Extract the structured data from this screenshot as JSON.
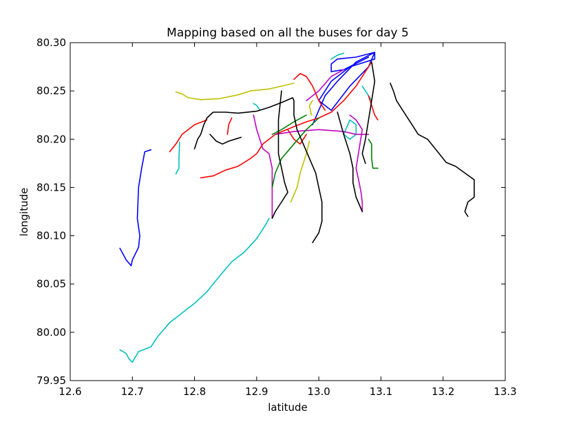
{
  "chart_data": {
    "type": "line",
    "title": "Mapping based on all the buses for day 5",
    "xlabel": "latitude",
    "ylabel": "longitude",
    "xlim": [
      12.6,
      13.3
    ],
    "ylim": [
      79.95,
      80.3
    ],
    "xticks": [
      "12.6",
      "12.7",
      "12.8",
      "12.9",
      "13.0",
      "13.1",
      "13.2",
      "13.3"
    ],
    "yticks": [
      "79.95",
      "80.00",
      "80.05",
      "80.10",
      "80.15",
      "80.20",
      "80.25",
      "80.30"
    ],
    "grid": false,
    "legend": "none",
    "series": [
      {
        "color": "#0000ff",
        "points": [
          [
            12.68,
            80.087
          ],
          [
            12.69,
            80.075
          ],
          [
            12.698,
            80.069
          ],
          [
            12.7,
            80.075
          ],
          [
            12.71,
            80.088
          ],
          [
            12.712,
            80.1
          ],
          [
            12.708,
            80.118
          ],
          [
            12.71,
            80.15
          ],
          [
            12.715,
            80.17
          ],
          [
            12.72,
            80.187
          ],
          [
            12.73,
            80.189
          ]
        ]
      },
      {
        "color": "#0000ff",
        "points": [
          [
            12.99,
            80.215
          ],
          [
            13.01,
            80.245
          ],
          [
            13.03,
            80.26
          ],
          [
            13.06,
            80.28
          ],
          [
            13.09,
            80.29
          ],
          [
            13.09,
            80.283
          ],
          [
            13.05,
            80.275
          ],
          [
            13.02,
            80.26
          ],
          [
            13.0,
            80.24
          ],
          [
            13.02,
            80.23
          ],
          [
            13.05,
            80.255
          ],
          [
            13.08,
            80.275
          ],
          [
            13.09,
            80.29
          ],
          [
            13.06,
            80.285
          ],
          [
            13.03,
            80.283
          ],
          [
            13.02,
            80.278
          ],
          [
            13.02,
            80.27
          ],
          [
            13.04,
            80.272
          ],
          [
            13.08,
            80.285
          ]
        ]
      },
      {
        "color": "#00bfbf",
        "points": [
          [
            12.68,
            79.982
          ],
          [
            12.69,
            79.978
          ],
          [
            12.695,
            79.972
          ],
          [
            12.7,
            79.969
          ],
          [
            12.71,
            79.98
          ],
          [
            12.73,
            79.985
          ],
          [
            12.74,
            79.995
          ],
          [
            12.76,
            80.01
          ],
          [
            12.78,
            80.02
          ],
          [
            12.8,
            80.03
          ],
          [
            12.82,
            80.042
          ],
          [
            12.84,
            80.058
          ],
          [
            12.86,
            80.073
          ],
          [
            12.88,
            80.083
          ],
          [
            12.9,
            80.097
          ],
          [
            12.915,
            80.112
          ],
          [
            12.92,
            80.118
          ]
        ]
      },
      {
        "color": "#00bfbf",
        "points": [
          [
            12.77,
            80.164
          ],
          [
            12.775,
            80.17
          ],
          [
            12.775,
            80.18
          ],
          [
            12.776,
            80.197
          ]
        ]
      },
      {
        "color": "#00bfbf",
        "points": [
          [
            12.895,
            80.237
          ],
          [
            12.9,
            80.235
          ],
          [
            12.905,
            80.23
          ]
        ]
      },
      {
        "color": "#00bfbf",
        "points": [
          [
            13.02,
            80.283
          ],
          [
            13.03,
            80.287
          ],
          [
            13.04,
            80.289
          ]
        ]
      },
      {
        "color": "#00bfbf",
        "points": [
          [
            13.04,
            80.205
          ],
          [
            13.05,
            80.2
          ],
          [
            13.06,
            80.205
          ],
          [
            13.06,
            80.215
          ],
          [
            13.05,
            80.22
          ],
          [
            13.04,
            80.205
          ]
        ]
      },
      {
        "color": "#00bfbf",
        "points": [
          [
            13.07,
            80.255
          ],
          [
            13.075,
            80.25
          ],
          [
            13.08,
            80.245
          ],
          [
            13.085,
            80.24
          ]
        ]
      },
      {
        "color": "#bfbf00",
        "points": [
          [
            12.77,
            80.249
          ],
          [
            12.78,
            80.247
          ],
          [
            12.79,
            80.243
          ],
          [
            12.81,
            80.241
          ],
          [
            12.84,
            80.242
          ],
          [
            12.87,
            80.246
          ],
          [
            12.89,
            80.25
          ],
          [
            12.92,
            80.252
          ],
          [
            12.94,
            80.255
          ],
          [
            12.96,
            80.258
          ]
        ]
      },
      {
        "color": "#bfbf00",
        "points": [
          [
            12.985,
            80.198
          ],
          [
            12.98,
            80.185
          ],
          [
            12.975,
            80.175
          ],
          [
            12.97,
            80.165
          ],
          [
            12.965,
            80.15
          ],
          [
            12.955,
            80.135
          ]
        ]
      },
      {
        "color": "#bfbf00",
        "points": [
          [
            12.988,
            80.225
          ],
          [
            12.985,
            80.235
          ],
          [
            12.99,
            80.24
          ]
        ]
      },
      {
        "color": "#ff0000",
        "points": [
          [
            12.81,
            80.16
          ],
          [
            12.83,
            80.162
          ],
          [
            12.85,
            80.168
          ],
          [
            12.87,
            80.172
          ],
          [
            12.88,
            80.176
          ],
          [
            12.89,
            80.18
          ],
          [
            12.9,
            80.185
          ],
          [
            12.905,
            80.19
          ],
          [
            12.91,
            80.195
          ],
          [
            12.93,
            80.205
          ],
          [
            12.96,
            80.213
          ],
          [
            12.98,
            80.218
          ],
          [
            13.0,
            80.222
          ],
          [
            13.02,
            80.228
          ],
          [
            13.04,
            80.24
          ],
          [
            13.06,
            80.255
          ],
          [
            13.08,
            80.275
          ],
          [
            13.085,
            80.28
          ]
        ]
      },
      {
        "color": "#ff0000",
        "points": [
          [
            12.76,
            80.187
          ],
          [
            12.77,
            80.195
          ],
          [
            12.78,
            80.205
          ],
          [
            12.8,
            80.215
          ],
          [
            12.82,
            80.22
          ]
        ]
      },
      {
        "color": "#ff0000",
        "points": [
          [
            12.853,
            80.205
          ],
          [
            12.855,
            80.215
          ],
          [
            12.86,
            80.222
          ]
        ]
      },
      {
        "color": "#ff0000",
        "points": [
          [
            12.96,
            80.262
          ],
          [
            12.97,
            80.268
          ],
          [
            12.98,
            80.265
          ],
          [
            12.99,
            80.255
          ],
          [
            13.0,
            80.24
          ],
          [
            13.01,
            80.23
          ]
        ]
      },
      {
        "color": "#ff0000",
        "points": [
          [
            12.95,
            80.21
          ],
          [
            12.96,
            80.2
          ],
          [
            12.97,
            80.195
          ],
          [
            12.98,
            80.205
          ]
        ]
      },
      {
        "color": "#ff0000",
        "points": [
          [
            13.08,
            80.245
          ],
          [
            13.085,
            80.235
          ],
          [
            13.09,
            80.225
          ],
          [
            13.095,
            80.22
          ]
        ]
      },
      {
        "color": "#bf00bf",
        "points": [
          [
            12.895,
            80.225
          ],
          [
            12.9,
            80.21
          ],
          [
            12.905,
            80.2
          ],
          [
            12.91,
            80.19
          ],
          [
            12.92,
            80.185
          ],
          [
            12.925,
            80.17
          ],
          [
            12.925,
            80.14
          ],
          [
            12.925,
            80.118
          ]
        ]
      },
      {
        "color": "#bf00bf",
        "points": [
          [
            13.05,
            80.225
          ],
          [
            13.06,
            80.22
          ],
          [
            13.07,
            80.21
          ],
          [
            13.065,
            80.19
          ],
          [
            13.06,
            80.17
          ],
          [
            13.065,
            80.155
          ],
          [
            13.068,
            80.145
          ],
          [
            13.07,
            80.135
          ],
          [
            13.07,
            80.125
          ]
        ]
      },
      {
        "color": "#bf00bf",
        "points": [
          [
            12.93,
            80.205
          ],
          [
            12.96,
            80.208
          ],
          [
            13.0,
            80.21
          ],
          [
            13.04,
            80.208
          ],
          [
            13.06,
            80.205
          ],
          [
            13.08,
            80.205
          ]
        ]
      },
      {
        "color": "#bf00bf",
        "points": [
          [
            12.98,
            80.24
          ],
          [
            13.0,
            80.25
          ],
          [
            13.02,
            80.265
          ],
          [
            13.04,
            80.272
          ]
        ]
      },
      {
        "color": "#007f00",
        "points": [
          [
            12.925,
            80.15
          ],
          [
            12.93,
            80.165
          ],
          [
            12.94,
            80.18
          ],
          [
            12.96,
            80.195
          ],
          [
            12.98,
            80.21
          ],
          [
            13.0,
            80.222
          ]
        ]
      },
      {
        "color": "#007f00",
        "points": [
          [
            12.925,
            80.205
          ],
          [
            12.94,
            80.21
          ],
          [
            12.96,
            80.218
          ],
          [
            12.98,
            80.225
          ]
        ]
      },
      {
        "color": "#007f00",
        "points": [
          [
            13.08,
            80.2
          ],
          [
            13.085,
            80.195
          ],
          [
            13.085,
            80.18
          ],
          [
            13.087,
            80.17
          ],
          [
            13.095,
            80.17
          ]
        ]
      },
      {
        "color": "#000000",
        "points": [
          [
            12.8,
            80.19
          ],
          [
            12.805,
            80.2
          ],
          [
            12.81,
            80.205
          ],
          [
            12.815,
            80.215
          ],
          [
            12.82,
            80.222
          ],
          [
            12.83,
            80.228
          ],
          [
            12.85,
            80.228
          ],
          [
            12.87,
            80.227
          ],
          [
            12.9,
            80.229
          ],
          [
            12.92,
            80.233
          ],
          [
            12.94,
            80.238
          ],
          [
            12.958,
            80.243
          ],
          [
            12.96,
            80.24
          ],
          [
            12.96,
            80.225
          ],
          [
            12.965,
            80.21
          ],
          [
            12.975,
            80.195
          ],
          [
            12.985,
            80.18
          ],
          [
            12.995,
            80.165
          ],
          [
            13.0,
            80.15
          ],
          [
            13.005,
            80.135
          ],
          [
            13.005,
            80.115
          ],
          [
            13.0,
            80.103
          ],
          [
            12.99,
            80.093
          ]
        ]
      },
      {
        "color": "#000000",
        "points": [
          [
            12.825,
            80.205
          ],
          [
            12.835,
            80.198
          ],
          [
            12.845,
            80.195
          ],
          [
            12.855,
            80.198
          ],
          [
            12.865,
            80.2
          ],
          [
            12.875,
            80.202
          ]
        ]
      },
      {
        "color": "#000000",
        "points": [
          [
            12.94,
            80.25
          ],
          [
            12.935,
            80.22
          ],
          [
            12.935,
            80.2
          ],
          [
            12.935,
            80.185
          ],
          [
            12.94,
            80.17
          ],
          [
            12.945,
            80.155
          ],
          [
            12.95,
            80.145
          ],
          [
            12.94,
            80.135
          ],
          [
            12.93,
            80.125
          ],
          [
            12.925,
            80.118
          ]
        ]
      },
      {
        "color": "#000000",
        "points": [
          [
            13.03,
            80.228
          ],
          [
            13.04,
            80.205
          ],
          [
            13.05,
            80.185
          ],
          [
            13.055,
            80.17
          ],
          [
            13.055,
            80.155
          ],
          [
            13.06,
            80.14
          ],
          [
            13.07,
            80.125
          ]
        ]
      },
      {
        "color": "#000000",
        "points": [
          [
            13.085,
            80.28
          ],
          [
            13.09,
            80.26
          ],
          [
            13.085,
            80.24
          ],
          [
            13.08,
            80.22
          ],
          [
            13.075,
            80.2
          ],
          [
            13.07,
            80.185
          ],
          [
            13.075,
            80.175
          ]
        ]
      },
      {
        "color": "#000000",
        "points": [
          [
            13.115,
            80.258
          ],
          [
            13.12,
            80.25
          ],
          [
            13.125,
            80.24
          ],
          [
            13.13,
            80.235
          ],
          [
            13.14,
            80.225
          ],
          [
            13.15,
            80.215
          ],
          [
            13.16,
            80.205
          ],
          [
            13.175,
            80.2
          ],
          [
            13.19,
            80.188
          ],
          [
            13.205,
            80.176
          ],
          [
            13.22,
            80.172
          ],
          [
            13.235,
            80.165
          ],
          [
            13.25,
            80.158
          ],
          [
            13.25,
            80.14
          ],
          [
            13.24,
            80.135
          ],
          [
            13.235,
            80.125
          ],
          [
            13.24,
            80.12
          ]
        ]
      }
    ]
  }
}
